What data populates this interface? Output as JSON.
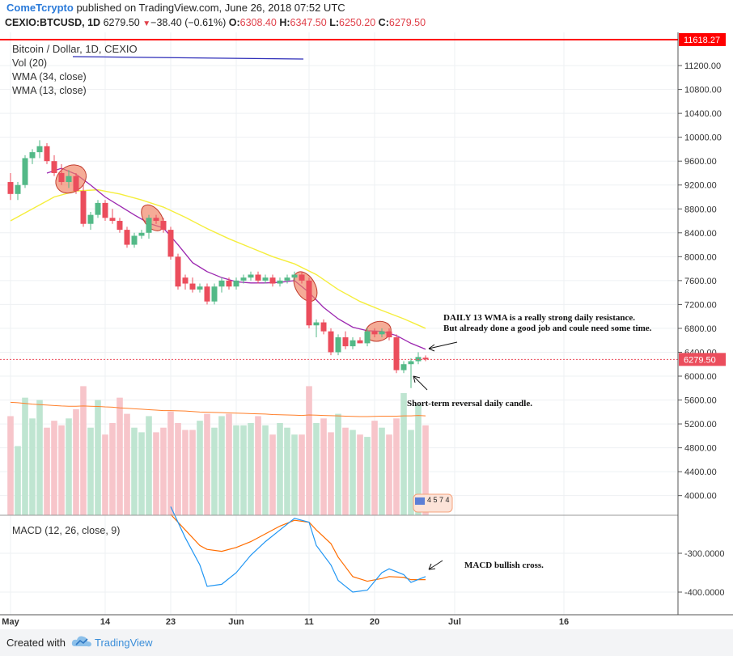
{
  "header": {
    "publisher": "ComeTcrypto",
    "published_text": "published on TradingView.com, June 26, 2018 07:52 UTC",
    "symbol": "CEXIO:BTCUSD, 1D",
    "last": "6279.50",
    "change": "−38.40 (−0.61%)",
    "o_label": "O:",
    "o": "6308.40",
    "h_label": "H:",
    "h": "6347.50",
    "l_label": "L:",
    "l": "6250.20",
    "c_label": "C:",
    "c": "6279.50"
  },
  "legend": {
    "title": "Bitcoin / Dollar, 1D, CEXIO",
    "vol": "Vol (20)",
    "wma34": "WMA (34, close)",
    "wma13": "WMA (13, close)",
    "macd": "MACD (12, 26, close, 9)"
  },
  "annotations": {
    "wma_note_line1": "DAILY 13 WMA is a really strong daily resistance.",
    "wma_note_line2": "But already done a good job and coule need some time.",
    "candle_note": "Short-term reversal daily candle.",
    "macd_note": "MACD bullish cross.",
    "events_badge": "4 5 7 4"
  },
  "footer": {
    "created_with": "Created with",
    "tradingview": "TradingView"
  },
  "colors": {
    "up": "#53b987",
    "down": "#eb4d5c",
    "wma13": "#9c27b0",
    "wma34": "#f5ee3c",
    "macd": "#2196f3",
    "signal": "#ff6d00",
    "highline": "#ff0000",
    "highlight": "#f08060"
  },
  "chart_data": {
    "type": "candlestick",
    "price_axis": {
      "ticks": [
        4000,
        4400,
        4800,
        5200,
        5600,
        6000,
        6400,
        6800,
        7200,
        7600,
        8000,
        8400,
        8800,
        9200,
        9600,
        10000,
        10400,
        10800,
        11200
      ],
      "tick_labels": [
        "4000.00",
        "4400.00",
        "4800.00",
        "5200.00",
        "5600.00",
        "6000.00",
        "6400.00",
        "6800.00",
        "7200.00",
        "7600.00",
        "8000.00",
        "8400.00",
        "8800.00",
        "9200.00",
        "9600.00",
        "10000.00",
        "10400.00",
        "10800.00",
        "11200.00"
      ]
    },
    "high_line": {
      "value": 11618.27,
      "label": "11618.27"
    },
    "last_price": {
      "value": 6279.5,
      "label": "6279.50"
    },
    "x_axis": {
      "labels": [
        "May",
        "14",
        "23",
        "Jun",
        "11",
        "20",
        "Jul",
        "16"
      ],
      "label_days": [
        1,
        14,
        23,
        32,
        42,
        51,
        62,
        77
      ]
    },
    "candles": [
      {
        "d": 1,
        "o": 9250,
        "h": 9400,
        "l": 8950,
        "c": 9050
      },
      {
        "d": 2,
        "o": 9050,
        "h": 9250,
        "l": 8950,
        "c": 9200
      },
      {
        "d": 3,
        "o": 9200,
        "h": 9700,
        "l": 9150,
        "c": 9650
      },
      {
        "d": 4,
        "o": 9650,
        "h": 9800,
        "l": 9550,
        "c": 9750
      },
      {
        "d": 5,
        "o": 9750,
        "h": 9950,
        "l": 9650,
        "c": 9850
      },
      {
        "d": 6,
        "o": 9850,
        "h": 9900,
        "l": 9550,
        "c": 9600
      },
      {
        "d": 7,
        "o": 9600,
        "h": 9700,
        "l": 9350,
        "c": 9400
      },
      {
        "d": 8,
        "o": 9400,
        "h": 9550,
        "l": 9200,
        "c": 9250
      },
      {
        "d": 9,
        "o": 9250,
        "h": 9450,
        "l": 9150,
        "c": 9350
      },
      {
        "d": 10,
        "o": 9350,
        "h": 9400,
        "l": 9050,
        "c": 9100
      },
      {
        "d": 11,
        "o": 9100,
        "h": 9200,
        "l": 8500,
        "c": 8550
      },
      {
        "d": 12,
        "o": 8550,
        "h": 8750,
        "l": 8450,
        "c": 8700
      },
      {
        "d": 13,
        "o": 8700,
        "h": 8950,
        "l": 8650,
        "c": 8900
      },
      {
        "d": 14,
        "o": 8900,
        "h": 8950,
        "l": 8600,
        "c": 8650
      },
      {
        "d": 15,
        "o": 8650,
        "h": 8800,
        "l": 8550,
        "c": 8600
      },
      {
        "d": 16,
        "o": 8600,
        "h": 8650,
        "l": 8400,
        "c": 8450
      },
      {
        "d": 17,
        "o": 8450,
        "h": 8500,
        "l": 8150,
        "c": 8200
      },
      {
        "d": 18,
        "o": 8200,
        "h": 8400,
        "l": 8150,
        "c": 8350
      },
      {
        "d": 19,
        "o": 8350,
        "h": 8450,
        "l": 8300,
        "c": 8400
      },
      {
        "d": 20,
        "o": 8400,
        "h": 8700,
        "l": 8300,
        "c": 8650
      },
      {
        "d": 21,
        "o": 8650,
        "h": 8700,
        "l": 8550,
        "c": 8600
      },
      {
        "d": 22,
        "o": 8600,
        "h": 8650,
        "l": 8400,
        "c": 8450
      },
      {
        "d": 23,
        "o": 8450,
        "h": 8500,
        "l": 7950,
        "c": 8000
      },
      {
        "d": 24,
        "o": 8000,
        "h": 8050,
        "l": 7450,
        "c": 7500
      },
      {
        "d": 25,
        "o": 7650,
        "h": 7700,
        "l": 7450,
        "c": 7550
      },
      {
        "d": 26,
        "o": 7550,
        "h": 7650,
        "l": 7400,
        "c": 7450
      },
      {
        "d": 27,
        "o": 7450,
        "h": 7550,
        "l": 7400,
        "c": 7500
      },
      {
        "d": 28,
        "o": 7500,
        "h": 7550,
        "l": 7200,
        "c": 7250
      },
      {
        "d": 29,
        "o": 7250,
        "h": 7550,
        "l": 7200,
        "c": 7500
      },
      {
        "d": 30,
        "o": 7500,
        "h": 7650,
        "l": 7400,
        "c": 7600
      },
      {
        "d": 31,
        "o": 7600,
        "h": 7650,
        "l": 7450,
        "c": 7500
      },
      {
        "d": 32,
        "o": 7500,
        "h": 7650,
        "l": 7450,
        "c": 7600
      },
      {
        "d": 33,
        "o": 7600,
        "h": 7700,
        "l": 7550,
        "c": 7650
      },
      {
        "d": 34,
        "o": 7650,
        "h": 7750,
        "l": 7600,
        "c": 7700
      },
      {
        "d": 35,
        "o": 7700,
        "h": 7750,
        "l": 7550,
        "c": 7600
      },
      {
        "d": 36,
        "o": 7600,
        "h": 7700,
        "l": 7550,
        "c": 7650
      },
      {
        "d": 37,
        "o": 7650,
        "h": 7700,
        "l": 7500,
        "c": 7550
      },
      {
        "d": 38,
        "o": 7550,
        "h": 7650,
        "l": 7500,
        "c": 7600
      },
      {
        "d": 39,
        "o": 7600,
        "h": 7700,
        "l": 7550,
        "c": 7650
      },
      {
        "d": 40,
        "o": 7650,
        "h": 7750,
        "l": 7600,
        "c": 7700
      },
      {
        "d": 41,
        "o": 7700,
        "h": 7750,
        "l": 7550,
        "c": 7600
      },
      {
        "d": 42,
        "o": 7600,
        "h": 7650,
        "l": 6800,
        "c": 6850
      },
      {
        "d": 43,
        "o": 6850,
        "h": 6950,
        "l": 6650,
        "c": 6900
      },
      {
        "d": 44,
        "o": 6900,
        "h": 6950,
        "l": 6700,
        "c": 6750
      },
      {
        "d": 45,
        "o": 6750,
        "h": 6800,
        "l": 6350,
        "c": 6400
      },
      {
        "d": 46,
        "o": 6400,
        "h": 6700,
        "l": 6350,
        "c": 6650
      },
      {
        "d": 47,
        "o": 6650,
        "h": 6750,
        "l": 6450,
        "c": 6500
      },
      {
        "d": 48,
        "o": 6500,
        "h": 6650,
        "l": 6450,
        "c": 6600
      },
      {
        "d": 49,
        "o": 6600,
        "h": 6650,
        "l": 6550,
        "c": 6550
      },
      {
        "d": 50,
        "o": 6550,
        "h": 6800,
        "l": 6500,
        "c": 6750
      },
      {
        "d": 51,
        "o": 6750,
        "h": 6800,
        "l": 6650,
        "c": 6700
      },
      {
        "d": 52,
        "o": 6700,
        "h": 6800,
        "l": 6650,
        "c": 6750
      },
      {
        "d": 53,
        "o": 6750,
        "h": 6800,
        "l": 6600,
        "c": 6650
      },
      {
        "d": 54,
        "o": 6650,
        "h": 6700,
        "l": 6050,
        "c": 6100
      },
      {
        "d": 55,
        "o": 6100,
        "h": 6250,
        "l": 6050,
        "c": 6200
      },
      {
        "d": 56,
        "o": 6200,
        "h": 6300,
        "l": 5800,
        "c": 6250
      },
      {
        "d": 57,
        "o": 6250,
        "h": 6400,
        "l": 6200,
        "c": 6320
      },
      {
        "d": 58,
        "o": 6308.4,
        "h": 6347.5,
        "l": 6250.2,
        "c": 6279.5
      }
    ],
    "wma13": [
      [
        6,
        9400
      ],
      [
        8,
        9480
      ],
      [
        10,
        9380
      ],
      [
        12,
        9200
      ],
      [
        14,
        9000
      ],
      [
        16,
        8850
      ],
      [
        18,
        8700
      ],
      [
        20,
        8560
      ],
      [
        22,
        8480
      ],
      [
        24,
        8200
      ],
      [
        26,
        7900
      ],
      [
        28,
        7750
      ],
      [
        30,
        7650
      ],
      [
        32,
        7580
      ],
      [
        34,
        7560
      ],
      [
        36,
        7560
      ],
      [
        38,
        7570
      ],
      [
        40,
        7600
      ],
      [
        42,
        7400
      ],
      [
        44,
        7150
      ],
      [
        46,
        6960
      ],
      [
        48,
        6820
      ],
      [
        50,
        6760
      ],
      [
        52,
        6750
      ],
      [
        54,
        6680
      ],
      [
        56,
        6550
      ],
      [
        58,
        6450
      ]
    ],
    "wma34": [
      [
        1,
        8600
      ],
      [
        4,
        8800
      ],
      [
        7,
        9000
      ],
      [
        10,
        9100
      ],
      [
        13,
        9120
      ],
      [
        16,
        9050
      ],
      [
        19,
        8950
      ],
      [
        22,
        8830
      ],
      [
        25,
        8660
      ],
      [
        28,
        8470
      ],
      [
        31,
        8300
      ],
      [
        34,
        8150
      ],
      [
        37,
        8000
      ],
      [
        40,
        7880
      ],
      [
        43,
        7700
      ],
      [
        46,
        7450
      ],
      [
        49,
        7250
      ],
      [
        52,
        7100
      ],
      [
        55,
        6960
      ],
      [
        58,
        6800
      ]
    ],
    "volume": [
      4300,
      3000,
      5100,
      4200,
      5000,
      3800,
      4100,
      3900,
      4200,
      4600,
      5600,
      3800,
      5000,
      3500,
      4000,
      5100,
      4400,
      3800,
      3600,
      4300,
      3600,
      3800,
      4500,
      4000,
      3700,
      3700,
      4100,
      4400,
      3800,
      4300,
      4400,
      3900,
      3900,
      4000,
      4300,
      3900,
      3500,
      4000,
      3800,
      3500,
      3500,
      5600,
      4000,
      4200,
      3600,
      4400,
      3800,
      3700,
      3500,
      3400,
      4100,
      3800,
      3500,
      4200,
      5300,
      3700,
      4800,
      3900
    ],
    "volume_ma": [
      4900,
      4880,
      4850,
      4820,
      4800,
      4780,
      4760,
      4740,
      4730,
      4730,
      4740,
      4730,
      4720,
      4700,
      4690,
      4660,
      4640,
      4620,
      4600,
      4580,
      4560,
      4540,
      4540,
      4530,
      4520,
      4500,
      4480,
      4470,
      4460,
      4450,
      4440,
      4430,
      4420,
      4410,
      4400,
      4390,
      4370,
      4360,
      4350,
      4340,
      4330,
      4350,
      4340,
      4330,
      4320,
      4310,
      4300,
      4290,
      4280,
      4280,
      4290,
      4300,
      4300,
      4300,
      4310,
      4310,
      4330,
      4310
    ],
    "macd_axis": {
      "ticks": [
        -300,
        -400
      ],
      "tick_labels": [
        "-300.0000",
        "-400.0000"
      ]
    },
    "macd": [
      [
        23,
        -180
      ],
      [
        25,
        -260
      ],
      [
        27,
        -330
      ],
      [
        28,
        -385
      ],
      [
        30,
        -380
      ],
      [
        32,
        -350
      ],
      [
        34,
        -305
      ],
      [
        36,
        -270
      ],
      [
        38,
        -240
      ],
      [
        40,
        -210
      ],
      [
        42,
        -220
      ],
      [
        43,
        -280
      ],
      [
        45,
        -330
      ],
      [
        46,
        -370
      ],
      [
        47,
        -385
      ],
      [
        48,
        -400
      ],
      [
        50,
        -395
      ],
      [
        52,
        -350
      ],
      [
        53,
        -340
      ],
      [
        55,
        -355
      ],
      [
        56,
        -375
      ],
      [
        58,
        -360
      ]
    ],
    "signal": [
      [
        23,
        -200
      ],
      [
        25,
        -240
      ],
      [
        27,
        -280
      ],
      [
        28,
        -290
      ],
      [
        30,
        -295
      ],
      [
        32,
        -285
      ],
      [
        34,
        -270
      ],
      [
        36,
        -250
      ],
      [
        38,
        -230
      ],
      [
        40,
        -215
      ],
      [
        42,
        -220
      ],
      [
        43,
        -240
      ],
      [
        45,
        -275
      ],
      [
        46,
        -310
      ],
      [
        47,
        -335
      ],
      [
        48,
        -360
      ],
      [
        50,
        -372
      ],
      [
        52,
        -365
      ],
      [
        53,
        -360
      ],
      [
        55,
        -362
      ],
      [
        56,
        -368
      ],
      [
        58,
        -368
      ]
    ]
  }
}
